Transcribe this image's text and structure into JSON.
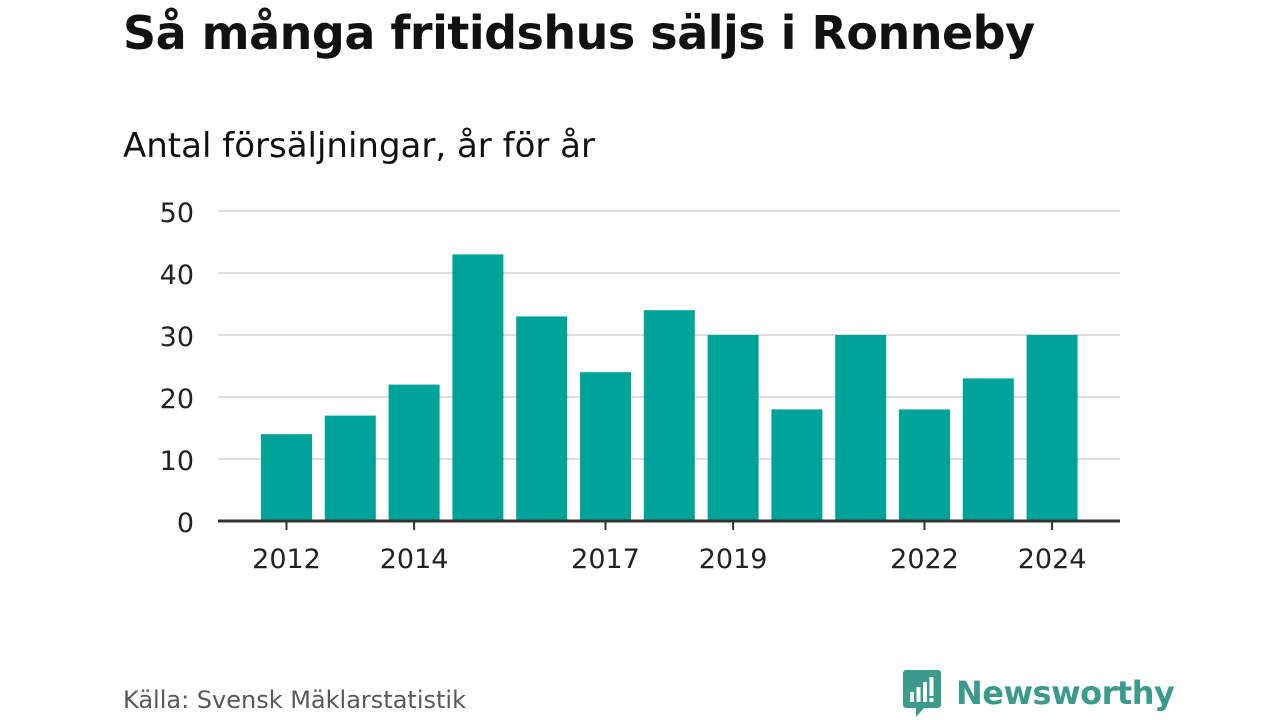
{
  "title": "Så många fritidshus säljs i Ronneby",
  "subtitle": "Antal försäljningar, år för år",
  "source": "Källa: Svensk Mäklarstatistik",
  "brand": {
    "name": "Newsworthy",
    "icon": "newsworthy-logo-icon",
    "color": "#3a9b8c"
  },
  "chart_data": {
    "type": "bar",
    "categories": [
      "2012",
      "2013",
      "2014",
      "2015",
      "2016",
      "2017",
      "2018",
      "2019",
      "2020",
      "2021",
      "2022",
      "2023",
      "2024"
    ],
    "values": [
      14,
      17,
      22,
      43,
      33,
      24,
      34,
      30,
      18,
      30,
      18,
      23,
      30
    ],
    "x_tick_labels": [
      "2012",
      "2014",
      "2017",
      "2019",
      "2022",
      "2024"
    ],
    "y_ticks": [
      0,
      10,
      20,
      30,
      40,
      50
    ],
    "ylim": [
      0,
      50
    ],
    "grid": true,
    "bar_color": "#00a399",
    "title": "Så många fritidshus säljs i Ronneby",
    "subtitle": "Antal försäljningar, år för år"
  }
}
